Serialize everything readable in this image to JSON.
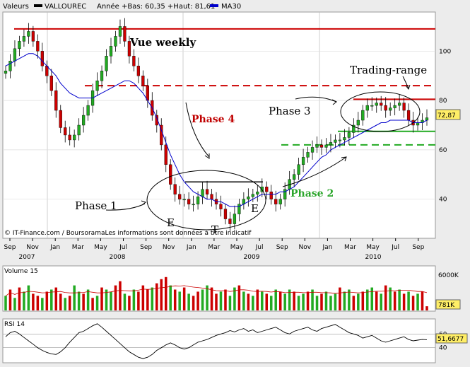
{
  "header": {
    "series_label": "Valeurs",
    "ticker": "VALLOUREC",
    "range_text": "Année +Bas: 60,35 +Haut: 81,61",
    "ma_label": "MA30",
    "colors": {
      "ticker": "#000000",
      "ma": "#0000cc"
    }
  },
  "watermark": "© IT-Finance.com / BoursoramaLes informations sont données à titre indicatif",
  "annotations": {
    "vue_weekly": "Vue weekly",
    "trading_range": "Trading-range",
    "phase1": "Phase 1",
    "phase2": "Phase 2",
    "phase3": "Phase 3",
    "phase4": "Phase 4",
    "e1": "E",
    "t": "T",
    "e2": "E"
  },
  "chart_data": [
    {
      "type": "candlestick",
      "panel": "price",
      "x_labels": [
        "Sep",
        "Nov",
        "Jan",
        "Mar",
        "May",
        "Jul",
        "Sep",
        "Nov",
        "Jan",
        "Mar",
        "May",
        "Jul",
        "Sep",
        "Nov",
        "Jan",
        "Mar",
        "May",
        "Jul",
        "Sep"
      ],
      "year_labels": [
        "2007",
        "2008",
        "2009",
        "2010"
      ],
      "y_ticks": [
        40,
        60,
        80,
        100
      ],
      "ylim": [
        25,
        115
      ],
      "last_value_label": "72,87",
      "colors": {
        "up": "#22aa22",
        "down": "#cc0000",
        "ma": "#0000cc",
        "resistance": "#cc0000",
        "support": "#22aa22"
      },
      "levels": {
        "top_resistance": 109,
        "dashed_resistance": 86,
        "range_top": 80.5,
        "range_bottom": 67.5,
        "dashed_support": 62,
        "base_black": 47
      },
      "close_path": [
        92,
        96,
        101,
        104,
        106,
        108,
        104,
        100,
        94,
        90,
        84,
        76,
        69,
        66,
        64,
        66,
        70,
        74,
        78,
        84,
        88,
        92,
        98,
        102,
        106,
        110,
        104,
        98,
        94,
        90,
        86,
        80,
        74,
        70,
        62,
        54,
        46,
        42,
        40,
        40,
        38,
        38,
        41,
        44,
        42,
        40,
        38,
        36,
        32,
        30,
        34,
        38,
        40,
        41,
        42,
        43,
        45,
        43,
        40,
        38,
        40,
        44,
        48,
        50,
        54,
        57,
        59,
        61,
        62,
        61,
        62,
        63,
        64,
        64,
        65,
        67,
        70,
        72,
        76,
        78,
        78,
        79,
        78,
        76,
        77,
        78,
        79,
        76,
        72,
        70,
        71,
        72,
        73
      ],
      "ma30": [
        94,
        95,
        96,
        97,
        98,
        99,
        99,
        98,
        96,
        94,
        92,
        90,
        87,
        85,
        83,
        82,
        81,
        81,
        81,
        81,
        82,
        83,
        84,
        85,
        86,
        87,
        88,
        88,
        87,
        85,
        83,
        80,
        77,
        73,
        68,
        63,
        58,
        54,
        50,
        47,
        45,
        43,
        42,
        41,
        40,
        40,
        39,
        39,
        38,
        37,
        37,
        37,
        38,
        39,
        40,
        41,
        42,
        42,
        42,
        42,
        43,
        43,
        44,
        45,
        47,
        49,
        51,
        53,
        55,
        57,
        58,
        60,
        61,
        62,
        63,
        64,
        65,
        66,
        67,
        68,
        69,
        70,
        71,
        71,
        72,
        72,
        72,
        72,
        72,
        71,
        71,
        71,
        72
      ]
    },
    {
      "type": "bar",
      "panel": "volume",
      "title": "Volume 15",
      "y_ticks_label": [
        "6000K"
      ],
      "last_value_label": "781K",
      "values": [
        0.35,
        0.5,
        0.3,
        0.55,
        0.45,
        0.6,
        0.4,
        0.35,
        0.3,
        0.45,
        0.5,
        0.55,
        0.4,
        0.3,
        0.35,
        0.6,
        0.45,
        0.4,
        0.5,
        0.3,
        0.35,
        0.55,
        0.5,
        0.45,
        0.6,
        0.7,
        0.4,
        0.35,
        0.5,
        0.45,
        0.6,
        0.5,
        0.55,
        0.65,
        0.75,
        0.8,
        0.6,
        0.5,
        0.45,
        0.55,
        0.4,
        0.35,
        0.45,
        0.5,
        0.6,
        0.55,
        0.4,
        0.45,
        0.5,
        0.35,
        0.55,
        0.6,
        0.45,
        0.4,
        0.35,
        0.5,
        0.45,
        0.4,
        0.35,
        0.5,
        0.45,
        0.4,
        0.5,
        0.45,
        0.35,
        0.4,
        0.45,
        0.5,
        0.35,
        0.4,
        0.45,
        0.35,
        0.4,
        0.55,
        0.45,
        0.5,
        0.35,
        0.4,
        0.45,
        0.5,
        0.55,
        0.45,
        0.4,
        0.6,
        0.55,
        0.45,
        0.5,
        0.4,
        0.45,
        0.35,
        0.4,
        0.45,
        0.1
      ],
      "directions": [
        1,
        0,
        1,
        0,
        1,
        1,
        0,
        0,
        1,
        0,
        1,
        0,
        0,
        1,
        0,
        1,
        1,
        0,
        1,
        0,
        1,
        0,
        1,
        1,
        0,
        0,
        1,
        0,
        1,
        0,
        0,
        0,
        1,
        0,
        0,
        0,
        1,
        0,
        1,
        0,
        1,
        0,
        0,
        1,
        1,
        0,
        0,
        1,
        0,
        1,
        1,
        0,
        1,
        0,
        1,
        0,
        1,
        0,
        1,
        1,
        0,
        1,
        1,
        0,
        1,
        1,
        0,
        1,
        1,
        0,
        1,
        1,
        1,
        0,
        1,
        1,
        0,
        1,
        0,
        1,
        1,
        0,
        1,
        0,
        1,
        0,
        1,
        0,
        1,
        0,
        1,
        0,
        0
      ]
    },
    {
      "type": "line",
      "panel": "rsi",
      "title": "RSI 14",
      "y_ticks": [
        40,
        60
      ],
      "last_value_label": "51,6677",
      "values": [
        56,
        62,
        64,
        60,
        55,
        50,
        45,
        40,
        36,
        33,
        31,
        30,
        34,
        40,
        48,
        55,
        62,
        64,
        68,
        72,
        75,
        70,
        64,
        58,
        52,
        46,
        40,
        34,
        30,
        26,
        24,
        26,
        30,
        36,
        40,
        44,
        47,
        44,
        40,
        38,
        40,
        44,
        48,
        50,
        52,
        55,
        58,
        60,
        62,
        65,
        63,
        66,
        68,
        64,
        66,
        62,
        64,
        66,
        68,
        70,
        66,
        62,
        60,
        64,
        66,
        68,
        70,
        66,
        64,
        68,
        70,
        72,
        74,
        70,
        66,
        62,
        60,
        58,
        54,
        56,
        58,
        54,
        50,
        48,
        50,
        52,
        54,
        56,
        52,
        50,
        51,
        52,
        51.7
      ]
    }
  ]
}
